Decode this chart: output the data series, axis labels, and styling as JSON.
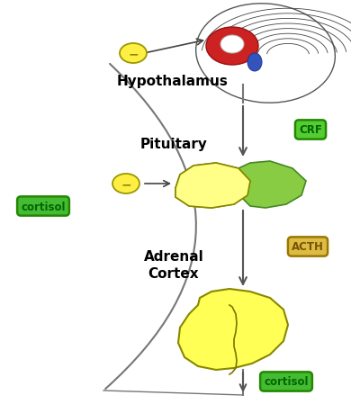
{
  "background_color": "#ffffff",
  "labels": {
    "hypothalamus": "Hypothalamus",
    "pituitary": "Pituitary",
    "adrenal": "Adrenal\nCortex",
    "crf": "CRF",
    "acth": "ACTH",
    "cortisol_left": "cortisol",
    "cortisol_bottom": "cortisol"
  },
  "badge_colors": {
    "crf_bg": "#55cc33",
    "acth_bg": "#ddbb44",
    "cortisol_bg": "#44bb33"
  },
  "yellow_dot_color": "#ffee44",
  "yellow_dot_edge": "#999900",
  "arrow_color": "#555555",
  "line_color": "#777777",
  "brain_outline": "#555555",
  "brain_fill": "#ffffff",
  "red_fill": "#cc2222",
  "blue_fill": "#3355bb",
  "pit_yellow": "#ffff88",
  "pit_yellow_edge": "#888800",
  "pit_green": "#88cc44",
  "pit_green_edge": "#448822",
  "adrenal_yellow": "#ffff55",
  "adrenal_edge": "#888800"
}
